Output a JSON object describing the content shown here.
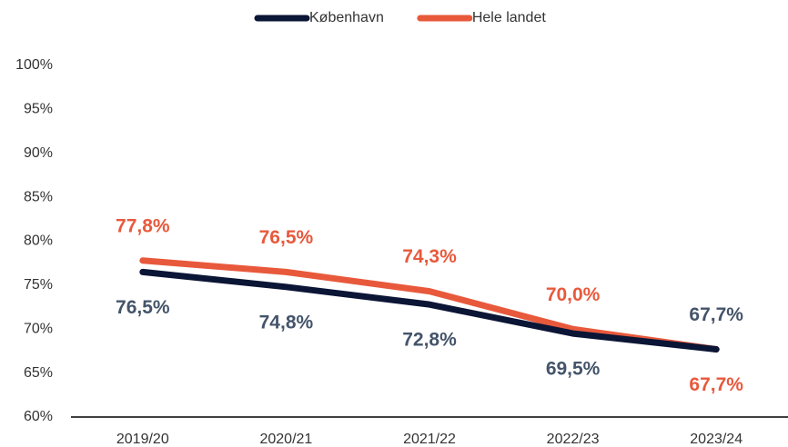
{
  "chart_data": {
    "type": "line",
    "categories": [
      "2019/20",
      "2020/21",
      "2021/22",
      "2022/23",
      "2023/24"
    ],
    "series": [
      {
        "name": "København",
        "color": "#0b1535",
        "label_color": "#44546a",
        "values": [
          76.5,
          74.8,
          72.8,
          69.5,
          67.7
        ],
        "value_labels": [
          "76,5%",
          "74,8%",
          "72,8%",
          "69,5%",
          "67,7%"
        ]
      },
      {
        "name": "Hele landet",
        "color": "#e8593c",
        "label_color": "#e8593c",
        "values": [
          77.8,
          76.5,
          74.3,
          70.0,
          67.7
        ],
        "value_labels": [
          "77,8%",
          "76,5%",
          "74,3%",
          "70,0%",
          "67,7%"
        ]
      }
    ],
    "ylim": [
      60,
      100
    ],
    "yticks": [
      {
        "value": 60,
        "label": "60%"
      },
      {
        "value": 65,
        "label": "65%"
      },
      {
        "value": 70,
        "label": "70%"
      },
      {
        "value": 75,
        "label": "75%"
      },
      {
        "value": 80,
        "label": "80%"
      },
      {
        "value": 85,
        "label": "85%"
      },
      {
        "value": 90,
        "label": "90%"
      },
      {
        "value": 95,
        "label": "95%"
      },
      {
        "value": 100,
        "label": "100%"
      }
    ],
    "legend": "top",
    "grid": false
  }
}
